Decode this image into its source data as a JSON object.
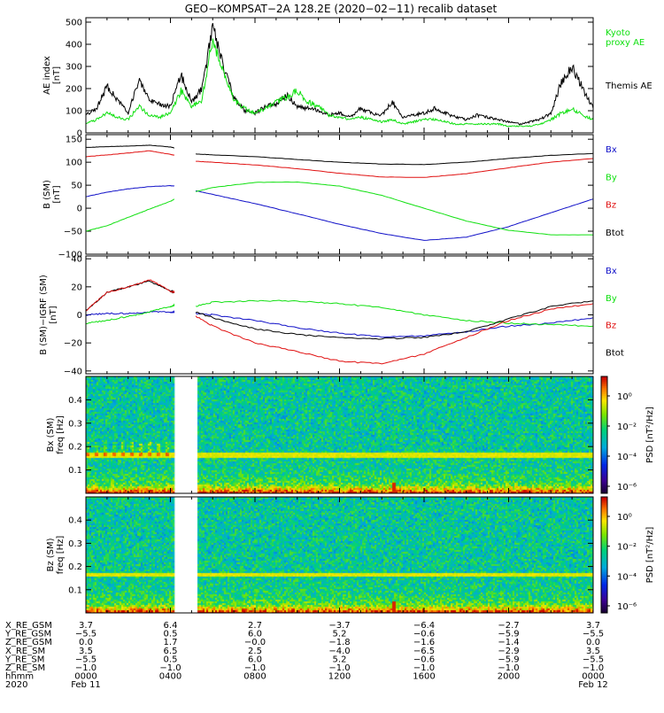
{
  "title": "GEO−KOMPSAT−2A 128.2E (2020−02−11) recalib dataset",
  "colors": {
    "black": "#000000",
    "blue": "#1010c8",
    "red": "#e01010",
    "green": "#10e010"
  },
  "chart_data": [
    {
      "type": "line",
      "panel": "ae",
      "ylabel_lines": [
        "AE index",
        "[nT]"
      ],
      "ylim": [
        0,
        520
      ],
      "yticks": [
        0,
        100,
        200,
        300,
        400,
        500
      ],
      "legend": [
        {
          "label": "Kyoto\nproxy AE",
          "color": "green"
        },
        {
          "label": "Themis AE",
          "color": "black"
        }
      ],
      "series": [
        {
          "name": "Themis AE",
          "color": "black",
          "x": [
            0.0,
            0.5,
            1.0,
            1.5,
            2.0,
            2.5,
            3.0,
            3.5,
            4.0,
            4.5,
            5.0,
            5.5,
            6.0,
            6.5,
            7.0,
            7.5,
            8.0,
            8.5,
            9.0,
            9.5,
            10.0,
            10.5,
            11.0,
            11.5,
            12.0,
            12.5,
            13.0,
            13.5,
            14.0,
            14.5,
            15.0,
            15.5,
            16.0,
            16.5,
            17.0,
            17.5,
            18.0,
            18.5,
            19.0,
            19.5,
            20.0,
            20.5,
            21.0,
            21.5,
            22.0,
            22.5,
            23.0,
            23.5,
            24.0
          ],
          "values": [
            80,
            110,
            210,
            150,
            90,
            240,
            150,
            130,
            120,
            260,
            140,
            200,
            470,
            310,
            160,
            100,
            90,
            120,
            130,
            170,
            120,
            110,
            100,
            80,
            90,
            70,
            110,
            90,
            80,
            140,
            70,
            80,
            90,
            110,
            90,
            70,
            60,
            80,
            70,
            60,
            50,
            40,
            50,
            60,
            90,
            230,
            300,
            200,
            110
          ]
        },
        {
          "name": "Kyoto proxy AE",
          "color": "green",
          "x": [
            0.0,
            0.5,
            1.0,
            1.5,
            2.0,
            2.5,
            3.0,
            3.5,
            4.0,
            4.5,
            5.0,
            5.5,
            6.0,
            6.5,
            7.0,
            7.5,
            8.0,
            8.5,
            9.0,
            9.5,
            10.0,
            10.5,
            11.0,
            11.5,
            12.0,
            12.5,
            13.0,
            13.5,
            14.0,
            14.5,
            15.0,
            15.5,
            16.0,
            16.5,
            17.0,
            17.5,
            18.0,
            18.5,
            19.0,
            19.5,
            20.0,
            20.5,
            21.0,
            21.5,
            22.0,
            22.5,
            23.0,
            23.5,
            24.0
          ],
          "values": [
            40,
            60,
            90,
            70,
            60,
            120,
            80,
            70,
            90,
            190,
            120,
            150,
            430,
            280,
            150,
            110,
            90,
            110,
            140,
            160,
            190,
            140,
            120,
            80,
            70,
            60,
            70,
            60,
            50,
            60,
            40,
            50,
            60,
            60,
            50,
            40,
            40,
            40,
            40,
            40,
            30,
            30,
            30,
            40,
            60,
            90,
            110,
            80,
            60
          ]
        }
      ]
    },
    {
      "type": "line",
      "panel": "b",
      "ylabel_lines": [
        "B (SM)",
        "[nT]"
      ],
      "ylim": [
        -100,
        160
      ],
      "yticks": [
        -100,
        -50,
        0,
        50,
        100,
        150
      ],
      "legend": [
        {
          "label": "Bx",
          "color": "blue"
        },
        {
          "label": "By",
          "color": "green"
        },
        {
          "label": "Bz",
          "color": "red"
        },
        {
          "label": "Btot",
          "color": "black"
        }
      ],
      "gap": [
        4.2,
        5.2
      ],
      "series": [
        {
          "name": "Btot",
          "color": "black",
          "x": [
            0.0,
            1.0,
            2.0,
            3.0,
            4.0,
            4.2,
            5.2,
            6.0,
            8.0,
            10.0,
            12.0,
            14.0,
            16.0,
            18.0,
            20.0,
            22.0,
            24.0
          ],
          "values": [
            132,
            134,
            135,
            137,
            133,
            131,
            118,
            116,
            112,
            106,
            100,
            96,
            95,
            100,
            108,
            115,
            119
          ]
        },
        {
          "name": "Bz",
          "color": "red",
          "x": [
            0.0,
            1.0,
            2.0,
            3.0,
            4.0,
            4.2,
            5.2,
            6.0,
            8.0,
            10.0,
            12.0,
            14.0,
            16.0,
            18.0,
            20.0,
            22.0,
            24.0
          ],
          "values": [
            112,
            116,
            120,
            125,
            117,
            115,
            102,
            100,
            94,
            86,
            76,
            68,
            67,
            75,
            88,
            100,
            108
          ]
        },
        {
          "name": "Bx",
          "color": "blue",
          "x": [
            0.0,
            1.0,
            2.0,
            3.0,
            4.0,
            4.2,
            5.2,
            6.0,
            8.0,
            10.0,
            12.0,
            14.0,
            16.0,
            18.0,
            20.0,
            22.0,
            24.0
          ],
          "values": [
            25,
            35,
            42,
            47,
            49,
            48,
            38,
            30,
            10,
            -12,
            -35,
            -55,
            -70,
            -63,
            -40,
            -10,
            20
          ]
        },
        {
          "name": "By",
          "color": "green",
          "x": [
            0.0,
            1.0,
            2.0,
            3.0,
            4.0,
            4.2,
            5.2,
            6.0,
            8.0,
            10.0,
            12.0,
            14.0,
            16.0,
            18.0,
            20.0,
            22.0,
            24.0
          ],
          "values": [
            -50,
            -38,
            -20,
            -2,
            15,
            20,
            36,
            45,
            56,
            57,
            48,
            28,
            0,
            -28,
            -48,
            -58,
            -58
          ]
        }
      ]
    },
    {
      "type": "line",
      "panel": "bres",
      "ylabel_lines": [
        "B (SM)−IGRF (SM)",
        "[nT]"
      ],
      "ylim": [
        -42,
        42
      ],
      "yticks": [
        -40,
        -20,
        0,
        20,
        40
      ],
      "legend": [
        {
          "label": "Bx",
          "color": "blue"
        },
        {
          "label": "By",
          "color": "green"
        },
        {
          "label": "Bz",
          "color": "red"
        },
        {
          "label": "Btot",
          "color": "black"
        }
      ],
      "gap": [
        4.2,
        5.2
      ],
      "series": [
        {
          "name": "Bx",
          "color": "blue",
          "x": [
            0.0,
            1.0,
            2.0,
            3.0,
            4.0,
            4.2,
            5.2,
            6.0,
            8.0,
            10.0,
            12.0,
            14.0,
            16.0,
            18.0,
            20.0,
            22.0,
            24.0
          ],
          "values": [
            0,
            1,
            1,
            2,
            2,
            2,
            1,
            0,
            -4,
            -9,
            -13,
            -16,
            -15,
            -12,
            -8,
            -6,
            -2
          ]
        },
        {
          "name": "By",
          "color": "green",
          "x": [
            0.0,
            1.0,
            2.0,
            3.0,
            4.0,
            4.2,
            5.2,
            6.0,
            8.0,
            10.0,
            12.0,
            14.0,
            16.0,
            18.0,
            20.0,
            22.0,
            24.0
          ],
          "values": [
            -6,
            -4,
            -1,
            2,
            6,
            7,
            6,
            9,
            10,
            10,
            8,
            5,
            0,
            -4,
            -6,
            -7,
            -8
          ]
        },
        {
          "name": "Btot",
          "color": "black",
          "x": [
            0.0,
            1.0,
            2.0,
            3.0,
            4.0,
            4.2,
            5.2,
            6.0,
            8.0,
            10.0,
            12.0,
            14.0,
            16.0,
            18.0,
            20.0,
            22.0,
            24.0
          ],
          "values": [
            3,
            16,
            20,
            24,
            17,
            16,
            2,
            -2,
            -10,
            -14,
            -16,
            -17,
            -16,
            -12,
            -3,
            6,
            10
          ]
        },
        {
          "name": "Bz",
          "color": "red",
          "x": [
            0.0,
            1.0,
            2.0,
            3.0,
            4.0,
            4.2,
            5.2,
            6.0,
            8.0,
            10.0,
            12.0,
            14.0,
            16.0,
            18.0,
            20.0,
            22.0,
            24.0
          ],
          "values": [
            3,
            16,
            20,
            25,
            17,
            16,
            -1,
            -8,
            -20,
            -26,
            -33,
            -35,
            -28,
            -16,
            -4,
            4,
            8
          ]
        }
      ]
    },
    {
      "type": "heatmap",
      "panel": "specx",
      "ylabel_lines": [
        "Bx (SM)",
        "freq [Hz]"
      ],
      "ylim": [
        0.0,
        0.5
      ],
      "yticks": [
        0.1,
        0.2,
        0.3,
        0.4
      ],
      "gap": [
        4.2,
        5.2
      ],
      "colorbar_label": "PSD [nT²/Hz]",
      "colorbar_ticks": [
        "10⁰",
        "10⁻²",
        "10⁻⁴",
        "10⁻⁶"
      ],
      "features": {
        "line_freq_hz": 0.167
      }
    },
    {
      "type": "heatmap",
      "panel": "specz",
      "ylabel_lines": [
        "Bz (SM)",
        "freq [Hz]"
      ],
      "ylim": [
        0.0,
        0.5
      ],
      "yticks": [
        0.1,
        0.2,
        0.3,
        0.4
      ],
      "gap": [
        4.2,
        5.2
      ],
      "colorbar_label": "PSD [nT²/Hz]",
      "colorbar_ticks": [
        "10⁰",
        "10⁻²",
        "10⁻⁴",
        "10⁻⁶"
      ],
      "features": {
        "line_freq_hz": 0.167
      }
    }
  ],
  "orbit_table": {
    "labels": [
      "X_RE_GSM",
      "Y_RE_GSM",
      "Z_RE_GSM",
      "X_RE_SM",
      "Y_RE_SM",
      "Z_RE_SM",
      "hhmm",
      "2020"
    ],
    "columns": [
      {
        "hour": 0,
        "values": [
          "3.7",
          "−5.5",
          "0.0",
          "3.5",
          "−5.5",
          "−1.0",
          "0000",
          "Feb 11"
        ]
      },
      {
        "hour": 4,
        "values": [
          "6.4",
          "0.5",
          "1.7",
          "6.5",
          "0.5",
          "−1.0",
          "0400",
          ""
        ]
      },
      {
        "hour": 8,
        "values": [
          "2.7",
          "6.0",
          "−0.0",
          "2.5",
          "6.0",
          "−1.0",
          "0800",
          ""
        ]
      },
      {
        "hour": 12,
        "values": [
          "−3.7",
          "5.2",
          "−1.8",
          "−4.0",
          "5.2",
          "−1.0",
          "1200",
          ""
        ]
      },
      {
        "hour": 16,
        "values": [
          "−6.4",
          "−0.6",
          "−1.6",
          "−6.5",
          "−0.6",
          "−1.0",
          "1600",
          ""
        ]
      },
      {
        "hour": 20,
        "values": [
          "−2.7",
          "−5.9",
          "−1.4",
          "−2.9",
          "−5.9",
          "−1.0",
          "2000",
          ""
        ]
      },
      {
        "hour": 24,
        "values": [
          "3.7",
          "−5.5",
          "0.0",
          "3.5",
          "−5.5",
          "−1.0",
          "0000",
          "Feb 12"
        ]
      }
    ]
  }
}
